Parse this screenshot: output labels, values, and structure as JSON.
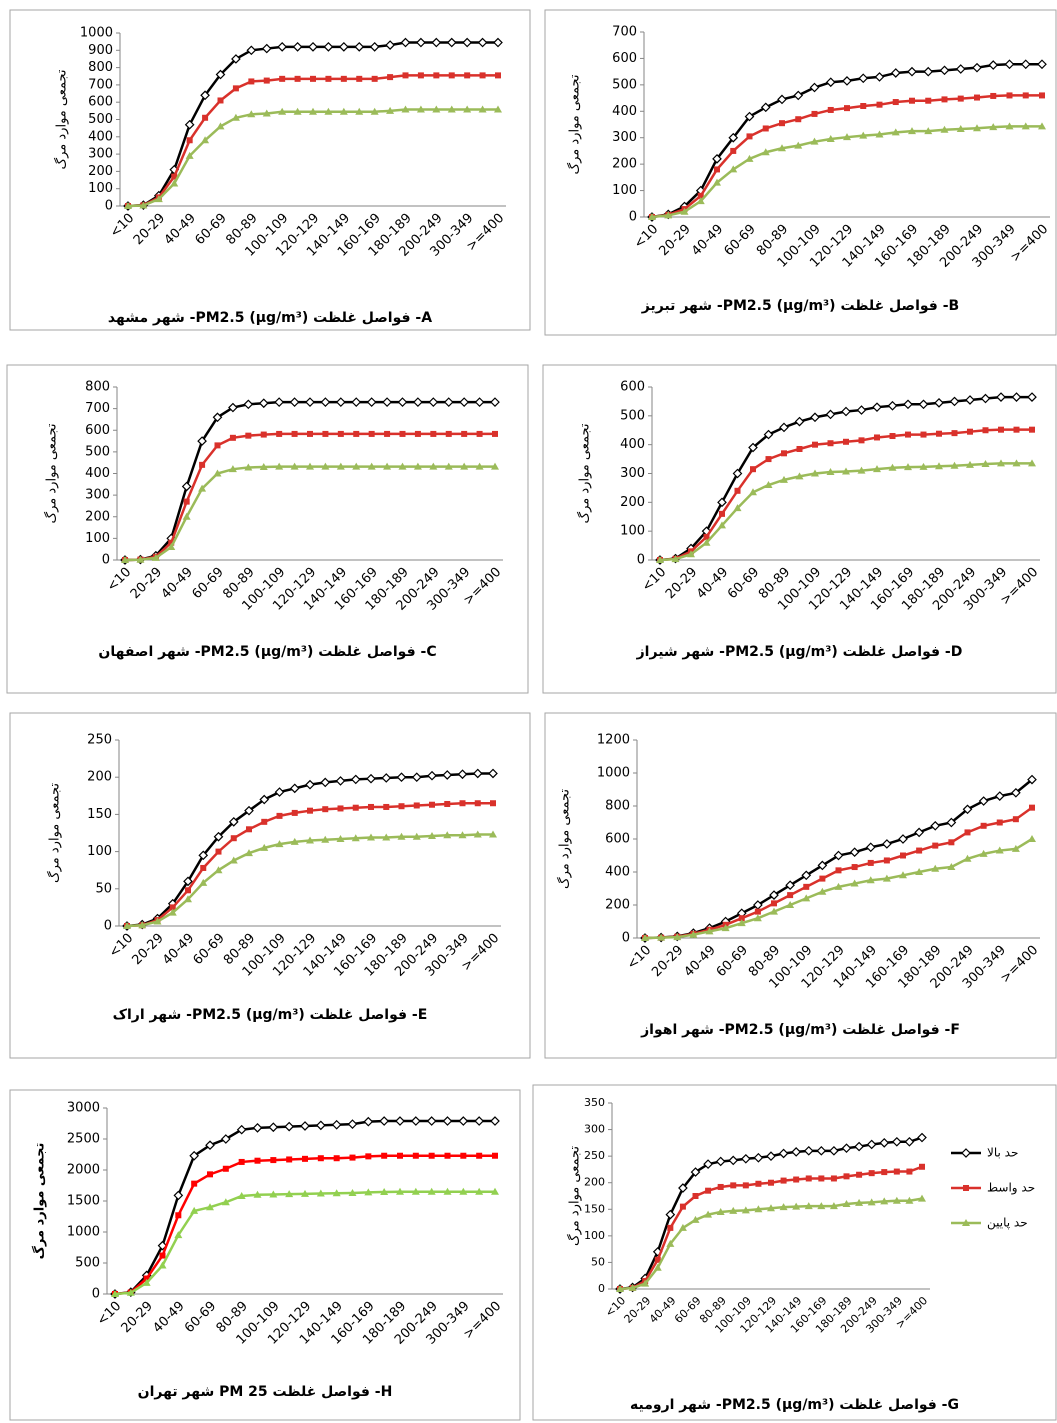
{
  "chart_data": [
    {
      "type": "line",
      "caption": "A- فواصل غلظت (µg/m³) PM2.5- شهر مشهد",
      "ylabel": "تجمعی موارد مرگ",
      "categories": [
        "<10",
        null,
        "20-29",
        null,
        "40-49",
        null,
        "60-69",
        null,
        "80-89",
        null,
        "100-109",
        null,
        "120-129",
        null,
        "140-149",
        null,
        "160-169",
        null,
        "180-189",
        null,
        "200-249",
        null,
        "300-349",
        null,
        ">=400"
      ],
      "ylim": [
        0,
        1000
      ],
      "yticks": [
        0,
        100,
        200,
        300,
        400,
        500,
        600,
        700,
        800,
        900,
        1000
      ],
      "series": [
        {
          "color": "#000000",
          "marker": "diamond",
          "values": [
            0,
            5,
            60,
            210,
            470,
            640,
            760,
            850,
            900,
            910,
            920,
            920,
            920,
            920,
            920,
            920,
            920,
            930,
            945,
            945,
            945,
            945,
            945,
            945,
            945
          ]
        },
        {
          "color": "#d9312b",
          "marker": "square",
          "values": [
            0,
            4,
            50,
            170,
            380,
            510,
            610,
            680,
            720,
            725,
            735,
            735,
            735,
            735,
            735,
            735,
            735,
            745,
            755,
            755,
            755,
            755,
            755,
            755,
            755
          ]
        },
        {
          "color": "#9bbb59",
          "marker": "triangle",
          "values": [
            0,
            3,
            40,
            130,
            290,
            380,
            460,
            510,
            530,
            535,
            545,
            545,
            545,
            545,
            545,
            545,
            545,
            550,
            558,
            558,
            558,
            558,
            558,
            558,
            558
          ]
        }
      ]
    },
    {
      "type": "line",
      "caption": "B- فواصل غلظت (µg/m³) PM2.5- شهر تبریز",
      "ylabel": "تجمعی موارد مرگ",
      "categories": [
        "<10",
        null,
        "20-29",
        null,
        "40-49",
        null,
        "60-69",
        null,
        "80-89",
        null,
        "100-109",
        null,
        "120-129",
        null,
        "140-149",
        null,
        "160-169",
        null,
        "180-189",
        null,
        "200-249",
        null,
        "300-349",
        null,
        ">=400"
      ],
      "ylim": [
        0,
        700
      ],
      "yticks": [
        0,
        100,
        200,
        300,
        400,
        500,
        600,
        700
      ],
      "series": [
        {
          "color": "#000000",
          "marker": "diamond",
          "values": [
            0,
            10,
            40,
            100,
            220,
            300,
            380,
            415,
            445,
            460,
            490,
            510,
            515,
            525,
            530,
            545,
            550,
            550,
            555,
            560,
            565,
            575,
            578,
            578,
            578
          ]
        },
        {
          "color": "#d9312b",
          "marker": "square",
          "values": [
            0,
            8,
            30,
            80,
            180,
            250,
            305,
            335,
            355,
            370,
            390,
            405,
            412,
            420,
            425,
            435,
            440,
            440,
            445,
            448,
            452,
            458,
            460,
            460,
            460
          ]
        },
        {
          "color": "#9bbb59",
          "marker": "triangle",
          "values": [
            0,
            6,
            20,
            60,
            130,
            180,
            220,
            245,
            260,
            270,
            285,
            295,
            302,
            308,
            312,
            320,
            325,
            325,
            330,
            333,
            336,
            340,
            343,
            343,
            343
          ]
        }
      ]
    },
    {
      "type": "line",
      "caption": "C- فواصل غلظت (µg/m³) PM2.5- شهر اصفهان",
      "ylabel": "تجمعی موارد مرگ",
      "categories": [
        "<10",
        null,
        "20-29",
        null,
        "40-49",
        null,
        "60-69",
        null,
        "80-89",
        null,
        "100-109",
        null,
        "120-129",
        null,
        "140-149",
        null,
        "160-169",
        null,
        "180-189",
        null,
        "200-249",
        null,
        "300-349",
        null,
        ">=400"
      ],
      "ylim": [
        0,
        800
      ],
      "yticks": [
        0,
        100,
        200,
        300,
        400,
        500,
        600,
        700,
        800
      ],
      "series": [
        {
          "color": "#000000",
          "marker": "diamond",
          "values": [
            0,
            2,
            20,
            100,
            340,
            550,
            660,
            705,
            720,
            725,
            730,
            730,
            730,
            730,
            730,
            730,
            730,
            730,
            730,
            730,
            730,
            730,
            730,
            730,
            730
          ]
        },
        {
          "color": "#d9312b",
          "marker": "square",
          "values": [
            0,
            2,
            15,
            80,
            270,
            440,
            530,
            565,
            575,
            580,
            583,
            583,
            583,
            583,
            583,
            583,
            583,
            583,
            583,
            583,
            583,
            583,
            583,
            583,
            583
          ]
        },
        {
          "color": "#9bbb59",
          "marker": "triangle",
          "values": [
            0,
            1,
            10,
            60,
            200,
            330,
            400,
            420,
            428,
            430,
            432,
            432,
            432,
            432,
            432,
            432,
            432,
            432,
            432,
            432,
            432,
            432,
            432,
            432,
            432
          ]
        }
      ]
    },
    {
      "type": "line",
      "caption": "D- فواصل غلظت (µg/m³) PM2.5- شهر شیراز",
      "ylabel": "تجمعی موارد مرگ",
      "categories": [
        "<10",
        null,
        "20-29",
        null,
        "40-49",
        null,
        "60-69",
        null,
        "80-89",
        null,
        "100-109",
        null,
        "120-129",
        null,
        "140-149",
        null,
        "160-169",
        null,
        "180-189",
        null,
        "200-249",
        null,
        "300-349",
        null,
        ">=400"
      ],
      "ylim": [
        0,
        600
      ],
      "yticks": [
        0,
        100,
        200,
        300,
        400,
        500,
        600
      ],
      "series": [
        {
          "color": "#000000",
          "marker": "diamond",
          "values": [
            0,
            5,
            40,
            100,
            200,
            300,
            390,
            435,
            460,
            480,
            495,
            505,
            515,
            520,
            530,
            535,
            540,
            540,
            545,
            550,
            555,
            560,
            565,
            565,
            565
          ]
        },
        {
          "color": "#d9312b",
          "marker": "square",
          "values": [
            0,
            4,
            30,
            80,
            160,
            240,
            315,
            350,
            370,
            385,
            400,
            405,
            410,
            415,
            425,
            430,
            435,
            435,
            438,
            440,
            445,
            450,
            452,
            452,
            452
          ]
        },
        {
          "color": "#9bbb59",
          "marker": "triangle",
          "values": [
            0,
            3,
            20,
            60,
            120,
            180,
            235,
            260,
            278,
            290,
            300,
            305,
            307,
            310,
            315,
            320,
            322,
            323,
            325,
            327,
            330,
            333,
            335,
            335,
            335
          ]
        }
      ]
    },
    {
      "type": "line",
      "caption": "E- فواصل غلظت (µg/m³) PM2.5- شهر اراک",
      "ylabel": "تجمعی موارد مرگ",
      "categories": [
        "<10",
        null,
        "20-29",
        null,
        "40-49",
        null,
        "60-69",
        null,
        "80-89",
        null,
        "100-109",
        null,
        "120-129",
        null,
        "140-149",
        null,
        "160-169",
        null,
        "180-189",
        null,
        "200-249",
        null,
        "300-349",
        null,
        ">=400"
      ],
      "ylim": [
        0,
        250
      ],
      "yticks": [
        0,
        50,
        100,
        150,
        200,
        250
      ],
      "series": [
        {
          "color": "#000000",
          "marker": "diamond",
          "values": [
            0,
            2,
            10,
            30,
            60,
            95,
            120,
            140,
            155,
            170,
            180,
            185,
            190,
            193,
            195,
            197,
            198,
            199,
            200,
            200,
            202,
            203,
            204,
            205,
            205
          ]
        },
        {
          "color": "#d9312b",
          "marker": "square",
          "values": [
            0,
            1,
            8,
            25,
            48,
            78,
            100,
            118,
            130,
            140,
            148,
            152,
            155,
            157,
            158,
            159,
            160,
            160,
            161,
            162,
            163,
            164,
            165,
            165,
            165
          ]
        },
        {
          "color": "#9bbb59",
          "marker": "triangle",
          "values": [
            0,
            1,
            6,
            18,
            36,
            58,
            75,
            88,
            98,
            105,
            110,
            113,
            115,
            116,
            117,
            118,
            119,
            119,
            120,
            120,
            121,
            122,
            122,
            123,
            123
          ]
        }
      ]
    },
    {
      "type": "line",
      "caption": "F- فواصل غلظت (µg/m³) PM2.5- شهر اهواز",
      "ylabel": "تجمعی موارد مرگ",
      "categories": [
        "<10",
        null,
        "20-29",
        null,
        "40-49",
        null,
        "60-69",
        null,
        "80-89",
        null,
        "100-109",
        null,
        "120-129",
        null,
        "140-149",
        null,
        "160-169",
        null,
        "180-189",
        null,
        "200-249",
        null,
        "300-349",
        null,
        ">=400"
      ],
      "ylim": [
        0,
        1200
      ],
      "yticks": [
        0,
        200,
        400,
        600,
        800,
        1000,
        1200
      ],
      "series": [
        {
          "color": "#000000",
          "marker": "diamond",
          "values": [
            0,
            3,
            10,
            30,
            60,
            100,
            150,
            200,
            260,
            320,
            380,
            440,
            500,
            520,
            550,
            570,
            600,
            640,
            680,
            700,
            780,
            830,
            860,
            880,
            960
          ]
        },
        {
          "color": "#d9312b",
          "marker": "square",
          "values": [
            0,
            2,
            8,
            25,
            50,
            80,
            120,
            160,
            210,
            260,
            310,
            360,
            410,
            430,
            455,
            470,
            500,
            530,
            560,
            580,
            640,
            680,
            700,
            720,
            790
          ]
        },
        {
          "color": "#9bbb59",
          "marker": "triangle",
          "values": [
            0,
            2,
            5,
            20,
            40,
            60,
            90,
            120,
            160,
            200,
            240,
            280,
            310,
            330,
            350,
            360,
            380,
            400,
            420,
            430,
            480,
            510,
            530,
            540,
            600
          ]
        }
      ]
    },
    {
      "type": "line",
      "caption": "H- فواصل غلظت  PM 25 شهر تهران",
      "ylabel": "تجمعی موارد مرگ",
      "categories": [
        "<10",
        null,
        "20-29",
        null,
        "40-49",
        null,
        "60-69",
        null,
        "80-89",
        null,
        "100-109",
        null,
        "120-129",
        null,
        "140-149",
        null,
        "160-169",
        null,
        "180-189",
        null,
        "200-249",
        null,
        "300-349",
        null,
        ">=400"
      ],
      "ylim": [
        0,
        3000
      ],
      "yticks": [
        0,
        500,
        1000,
        1500,
        2000,
        2500,
        3000
      ],
      "series": [
        {
          "color": "#000000",
          "marker": "diamond",
          "values": [
            0,
            30,
            300,
            780,
            1590,
            2230,
            2400,
            2500,
            2650,
            2680,
            2690,
            2700,
            2710,
            2720,
            2730,
            2740,
            2780,
            2790,
            2790,
            2790,
            2790,
            2790,
            2790,
            2790,
            2790
          ]
        },
        {
          "color": "#ff0000",
          "marker": "square",
          "values": [
            0,
            25,
            250,
            620,
            1270,
            1780,
            1930,
            2020,
            2130,
            2150,
            2160,
            2170,
            2180,
            2190,
            2190,
            2200,
            2220,
            2230,
            2230,
            2230,
            2230,
            2230,
            2230,
            2230,
            2230
          ]
        },
        {
          "color": "#92d050",
          "marker": "triangle",
          "values": [
            0,
            20,
            180,
            460,
            950,
            1340,
            1400,
            1480,
            1580,
            1600,
            1605,
            1610,
            1615,
            1620,
            1625,
            1630,
            1640,
            1645,
            1650,
            1650,
            1650,
            1650,
            1650,
            1650,
            1650
          ]
        }
      ]
    },
    {
      "type": "line",
      "caption": "G- فواصل غلظت (µg/m³) PM2.5- شهر ارومیه",
      "ylabel": "تجمعی موارد مرگ",
      "categories": [
        "<10",
        null,
        "20-29",
        null,
        "40-49",
        null,
        "60-69",
        null,
        "80-89",
        null,
        "100-109",
        null,
        "120-129",
        null,
        "140-149",
        null,
        "160-169",
        null,
        "180-189",
        null,
        "200-249",
        null,
        "300-349",
        null,
        ">=400"
      ],
      "ylim": [
        0,
        350
      ],
      "yticks": [
        0,
        50,
        100,
        150,
        200,
        250,
        300,
        350
      ],
      "legend": "right",
      "series": [
        {
          "name": "حد بالا",
          "color": "#000000",
          "marker": "diamond",
          "values": [
            0,
            3,
            20,
            70,
            140,
            190,
            220,
            235,
            240,
            242,
            245,
            247,
            250,
            255,
            258,
            260,
            260,
            260,
            265,
            268,
            272,
            275,
            277,
            277,
            285
          ]
        },
        {
          "name": "حد واسط",
          "color": "#d9312b",
          "marker": "square",
          "values": [
            0,
            2,
            15,
            55,
            115,
            155,
            175,
            185,
            192,
            195,
            195,
            198,
            200,
            204,
            206,
            208,
            208,
            208,
            212,
            215,
            218,
            220,
            221,
            221,
            230
          ]
        },
        {
          "name": "حد پایین",
          "color": "#9bbb59",
          "marker": "triangle",
          "values": [
            0,
            2,
            10,
            40,
            85,
            115,
            130,
            140,
            145,
            147,
            148,
            150,
            152,
            154,
            155,
            156,
            156,
            156,
            160,
            162,
            163,
            165,
            166,
            166,
            170
          ]
        }
      ]
    }
  ]
}
